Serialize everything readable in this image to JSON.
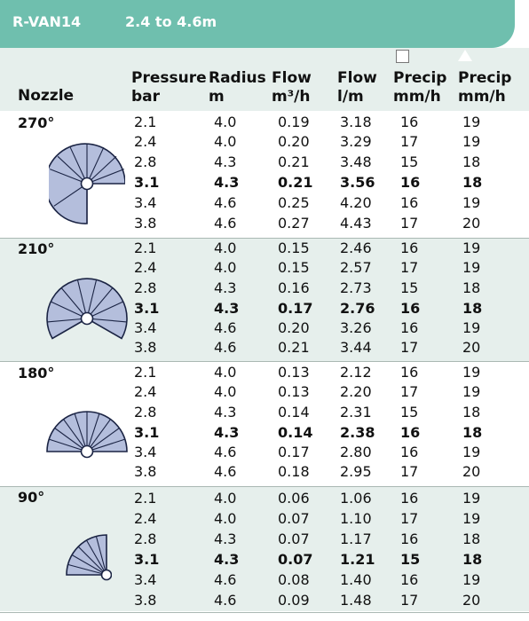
{
  "header": {
    "model": "R-VAN14",
    "radius_range": "2.4 to 4.6m"
  },
  "columns": {
    "nozzle": "Nozzle",
    "pressure": [
      "Pressure",
      "bar"
    ],
    "radius": [
      "Radius",
      "m"
    ],
    "flow_m3h": [
      "Flow",
      "m³/h"
    ],
    "flow_lm": [
      "Flow",
      "l/m"
    ],
    "precip_square": [
      "Precip",
      "mm/h"
    ],
    "precip_triangle": [
      "Precip",
      "mm/h"
    ]
  },
  "legend_icons": {
    "square": "square-spacing-icon",
    "triangle": "triangle-spacing-icon"
  },
  "colors": {
    "header_band": "#6fbfae",
    "shaded_group": "#e6efec",
    "nozzle_fill": "#b4bedc"
  },
  "groups": [
    {
      "nozzle": "270°",
      "rows": [
        [
          "2.1",
          "4.0",
          "0.19",
          "3.18",
          "16",
          "19"
        ],
        [
          "2.4",
          "4.0",
          "0.20",
          "3.29",
          "17",
          "19"
        ],
        [
          "2.8",
          "4.3",
          "0.21",
          "3.48",
          "15",
          "18"
        ],
        [
          "3.1",
          "4.3",
          "0.21",
          "3.56",
          "16",
          "18"
        ],
        [
          "3.4",
          "4.6",
          "0.25",
          "4.20",
          "16",
          "19"
        ],
        [
          "3.8",
          "4.6",
          "0.27",
          "4.43",
          "17",
          "20"
        ]
      ]
    },
    {
      "nozzle": "210°",
      "rows": [
        [
          "2.1",
          "4.0",
          "0.15",
          "2.46",
          "16",
          "19"
        ],
        [
          "2.4",
          "4.0",
          "0.15",
          "2.57",
          "17",
          "19"
        ],
        [
          "2.8",
          "4.3",
          "0.16",
          "2.73",
          "15",
          "18"
        ],
        [
          "3.1",
          "4.3",
          "0.17",
          "2.76",
          "16",
          "18"
        ],
        [
          "3.4",
          "4.6",
          "0.20",
          "3.26",
          "16",
          "19"
        ],
        [
          "3.8",
          "4.6",
          "0.21",
          "3.44",
          "17",
          "20"
        ]
      ]
    },
    {
      "nozzle": "180°",
      "rows": [
        [
          "2.1",
          "4.0",
          "0.13",
          "2.12",
          "16",
          "19"
        ],
        [
          "2.4",
          "4.0",
          "0.13",
          "2.20",
          "17",
          "19"
        ],
        [
          "2.8",
          "4.3",
          "0.14",
          "2.31",
          "15",
          "18"
        ],
        [
          "3.1",
          "4.3",
          "0.14",
          "2.38",
          "16",
          "18"
        ],
        [
          "3.4",
          "4.6",
          "0.17",
          "2.80",
          "16",
          "19"
        ],
        [
          "3.8",
          "4.6",
          "0.18",
          "2.95",
          "17",
          "20"
        ]
      ]
    },
    {
      "nozzle": "90°",
      "rows": [
        [
          "2.1",
          "4.0",
          "0.06",
          "1.06",
          "16",
          "19"
        ],
        [
          "2.4",
          "4.0",
          "0.07",
          "1.10",
          "17",
          "19"
        ],
        [
          "2.8",
          "4.3",
          "0.07",
          "1.17",
          "16",
          "18"
        ],
        [
          "3.1",
          "4.3",
          "0.07",
          "1.21",
          "15",
          "18"
        ],
        [
          "3.4",
          "4.6",
          "0.08",
          "1.40",
          "16",
          "19"
        ],
        [
          "3.8",
          "4.6",
          "0.09",
          "1.48",
          "17",
          "20"
        ]
      ]
    }
  ]
}
